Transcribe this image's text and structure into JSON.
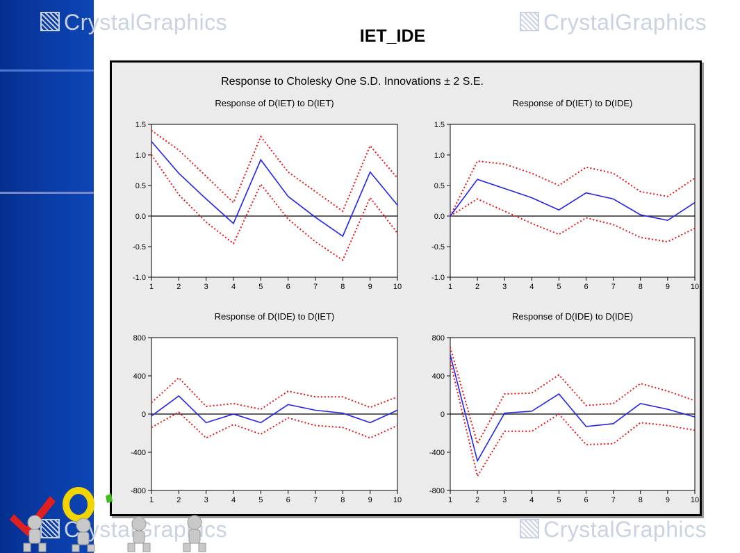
{
  "slide": {
    "title": "IET_IDE",
    "watermark_text": "CrystalGraphics"
  },
  "colors": {
    "sidebar": "#0a3ea8",
    "response_line": "#2222ee",
    "bands": "#ee1111",
    "zero_line": "#000000",
    "plot_bg": "#ffffff",
    "frame_bg": "#ebebeb"
  },
  "chart_data": {
    "type": "line",
    "title": "Response to Cholesky One S.D. Innovations ± 2 S.E.",
    "grid": false,
    "panels": [
      {
        "title": "Response of D(IET) to D(IET)",
        "x": [
          1,
          2,
          3,
          4,
          5,
          6,
          7,
          8,
          9,
          10
        ],
        "ylim": [
          -1.0,
          1.5
        ],
        "yticks": [
          "-1.0",
          "-0.5",
          "0.0",
          "0.5",
          "1.0",
          "1.5"
        ],
        "ytick_values": [
          -1.0,
          -0.5,
          0.0,
          0.5,
          1.0,
          1.5
        ],
        "response": [
          1.22,
          0.7,
          0.28,
          -0.12,
          0.92,
          0.32,
          -0.02,
          -0.33,
          0.72,
          0.18
        ],
        "upper": [
          1.4,
          1.08,
          0.65,
          0.22,
          1.3,
          0.72,
          0.4,
          0.08,
          1.15,
          0.62
        ],
        "lower": [
          1.0,
          0.35,
          -0.1,
          -0.45,
          0.52,
          -0.05,
          -0.42,
          -0.72,
          0.3,
          -0.28
        ]
      },
      {
        "title": "Response of D(IET) to D(IDE)",
        "x": [
          1,
          2,
          3,
          4,
          5,
          6,
          7,
          8,
          9,
          10
        ],
        "ylim": [
          -1.0,
          1.5
        ],
        "yticks": [
          "-1.0",
          "-0.5",
          "0.0",
          "0.5",
          "1.0",
          "1.5"
        ],
        "ytick_values": [
          -1.0,
          -0.5,
          0.0,
          0.5,
          1.0,
          1.5
        ],
        "response": [
          0.0,
          0.6,
          0.45,
          0.3,
          0.1,
          0.38,
          0.28,
          0.02,
          -0.07,
          0.22
        ],
        "upper": [
          0.0,
          0.9,
          0.85,
          0.7,
          0.5,
          0.8,
          0.7,
          0.4,
          0.32,
          0.62
        ],
        "lower": [
          0.0,
          0.28,
          0.08,
          -0.12,
          -0.3,
          -0.03,
          -0.14,
          -0.35,
          -0.42,
          -0.2
        ]
      },
      {
        "title": "Response of D(IDE) to D(IET)",
        "x": [
          1,
          2,
          3,
          4,
          5,
          6,
          7,
          8,
          9,
          10
        ],
        "ylim": [
          -800,
          800
        ],
        "yticks": [
          "-800",
          "-400",
          "0",
          "400",
          "800"
        ],
        "ytick_values": [
          -800,
          -400,
          0,
          400,
          800
        ],
        "response": [
          -20,
          190,
          -90,
          0,
          -90,
          100,
          40,
          10,
          -90,
          40
        ],
        "upper": [
          120,
          380,
          80,
          110,
          50,
          240,
          180,
          180,
          70,
          180
        ],
        "lower": [
          -140,
          20,
          -250,
          -110,
          -210,
          -40,
          -120,
          -140,
          -250,
          -120
        ]
      },
      {
        "title": "Response of D(IDE) to D(IDE)",
        "x": [
          1,
          2,
          3,
          4,
          5,
          6,
          7,
          8,
          9,
          10
        ],
        "ylim": [
          -800,
          800
        ],
        "yticks": [
          "-800",
          "-400",
          "0",
          "400",
          "800"
        ],
        "ytick_values": [
          -800,
          -400,
          0,
          400,
          800
        ],
        "response": [
          620,
          -490,
          10,
          30,
          210,
          -130,
          -100,
          110,
          50,
          -30
        ],
        "upper": [
          700,
          -310,
          210,
          220,
          410,
          90,
          110,
          320,
          240,
          140
        ],
        "lower": [
          550,
          -650,
          -180,
          -180,
          0,
          -320,
          -310,
          -90,
          -120,
          -170
        ]
      }
    ]
  }
}
